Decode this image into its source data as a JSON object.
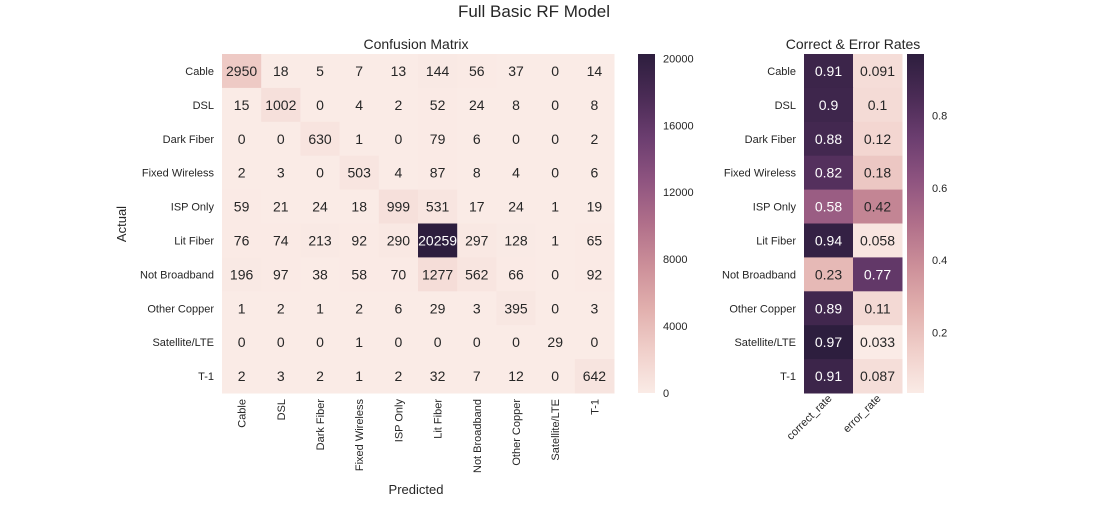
{
  "suptitle": "Full Basic RF Model",
  "chart_data": [
    {
      "type": "heatmap",
      "title": "Confusion Matrix",
      "xlabel": "Predicted",
      "ylabel": "Actual",
      "x_categories": [
        "Cable",
        "DSL",
        "Dark Fiber",
        "Fixed Wireless",
        "ISP Only",
        "Lit Fiber",
        "Not Broadband",
        "Other Copper",
        "Satellite/LTE",
        "T-1"
      ],
      "y_categories": [
        "Cable",
        "DSL",
        "Dark Fiber",
        "Fixed Wireless",
        "ISP Only",
        "Lit Fiber",
        "Not Broadband",
        "Other Copper",
        "Satellite/LTE",
        "T-1"
      ],
      "values": [
        [
          2950,
          18,
          5,
          7,
          13,
          144,
          56,
          37,
          0,
          14
        ],
        [
          15,
          1002,
          0,
          4,
          2,
          52,
          24,
          8,
          0,
          8
        ],
        [
          0,
          0,
          630,
          1,
          0,
          79,
          6,
          0,
          0,
          2
        ],
        [
          2,
          3,
          0,
          503,
          4,
          87,
          8,
          4,
          0,
          6
        ],
        [
          59,
          21,
          24,
          18,
          999,
          531,
          17,
          24,
          1,
          19
        ],
        [
          76,
          74,
          213,
          92,
          290,
          20259,
          297,
          128,
          1,
          65
        ],
        [
          196,
          97,
          38,
          58,
          70,
          1277,
          562,
          66,
          0,
          92
        ],
        [
          1,
          2,
          1,
          2,
          6,
          29,
          3,
          395,
          0,
          3
        ],
        [
          0,
          0,
          0,
          1,
          0,
          0,
          0,
          0,
          29,
          0
        ],
        [
          2,
          3,
          2,
          1,
          2,
          32,
          7,
          12,
          0,
          642
        ]
      ],
      "labels": [
        [
          "2950",
          "18",
          "5",
          "7",
          "13",
          "144",
          "56",
          "37",
          "0",
          "14"
        ],
        [
          "15",
          "1002",
          "0",
          "4",
          "2",
          "52",
          "24",
          "8",
          "0",
          "8"
        ],
        [
          "0",
          "0",
          "630",
          "1",
          "0",
          "79",
          "6",
          "0",
          "0",
          "2"
        ],
        [
          "2",
          "3",
          "0",
          "503",
          "4",
          "87",
          "8",
          "4",
          "0",
          "6"
        ],
        [
          "59",
          "21",
          "24",
          "18",
          "999",
          "531",
          "17",
          "24",
          "1",
          "19"
        ],
        [
          "76",
          "74",
          "213",
          "92",
          "290",
          "20259",
          "297",
          "128",
          "1",
          "65"
        ],
        [
          "196",
          "97",
          "38",
          "58",
          "70",
          "1277",
          "562",
          "66",
          "0",
          "92"
        ],
        [
          "1",
          "2",
          "1",
          "2",
          "6",
          "29",
          "3",
          "395",
          "0",
          "3"
        ],
        [
          "0",
          "0",
          "0",
          "1",
          "0",
          "0",
          "0",
          "0",
          "29",
          "0"
        ],
        [
          "2",
          "3",
          "2",
          "1",
          "2",
          "32",
          "7",
          "12",
          "0",
          "642"
        ]
      ],
      "vmin": 0,
      "vmax": 20259,
      "colorbar_ticks": [
        "0",
        "4000",
        "8000",
        "12000",
        "16000",
        "20000"
      ],
      "colorbar_tick_values": [
        0,
        4000,
        8000,
        12000,
        16000,
        20000
      ],
      "grid": false
    },
    {
      "type": "heatmap",
      "title": "Correct & Error Rates",
      "x_categories": [
        "correct_rate",
        "error_rate"
      ],
      "y_categories": [
        "Cable",
        "DSL",
        "Dark Fiber",
        "Fixed Wireless",
        "ISP Only",
        "Lit Fiber",
        "Not Broadband",
        "Other Copper",
        "Satellite/LTE",
        "T-1"
      ],
      "values": [
        [
          0.91,
          0.091
        ],
        [
          0.9,
          0.1
        ],
        [
          0.88,
          0.12
        ],
        [
          0.82,
          0.18
        ],
        [
          0.58,
          0.42
        ],
        [
          0.94,
          0.058
        ],
        [
          0.23,
          0.77
        ],
        [
          0.89,
          0.11
        ],
        [
          0.97,
          0.033
        ],
        [
          0.91,
          0.087
        ]
      ],
      "labels": [
        [
          "0.91",
          "0.091"
        ],
        [
          "0.9",
          "0.1"
        ],
        [
          "0.88",
          "0.12"
        ],
        [
          "0.82",
          "0.18"
        ],
        [
          "0.58",
          "0.42"
        ],
        [
          "0.94",
          "0.058"
        ],
        [
          "0.23",
          "0.77"
        ],
        [
          "0.89",
          "0.11"
        ],
        [
          "0.97",
          "0.033"
        ],
        [
          "0.91",
          "0.087"
        ]
      ],
      "vmin": 0.033,
      "vmax": 0.97,
      "colorbar_ticks": [
        "0.2",
        "0.4",
        "0.6",
        "0.8"
      ],
      "colorbar_tick_values": [
        0.2,
        0.4,
        0.6,
        0.8
      ],
      "grid": false
    }
  ],
  "colormap": [
    "#faebe6",
    "#f0cfca",
    "#e1afad",
    "#cc8f99",
    "#b06f8a",
    "#8f5480",
    "#6c3e70",
    "#4a2b55",
    "#2d1e3e"
  ],
  "text_colors": {
    "on_light": "#262626",
    "on_dark": "#ffffff",
    "ticks": "#262626"
  }
}
